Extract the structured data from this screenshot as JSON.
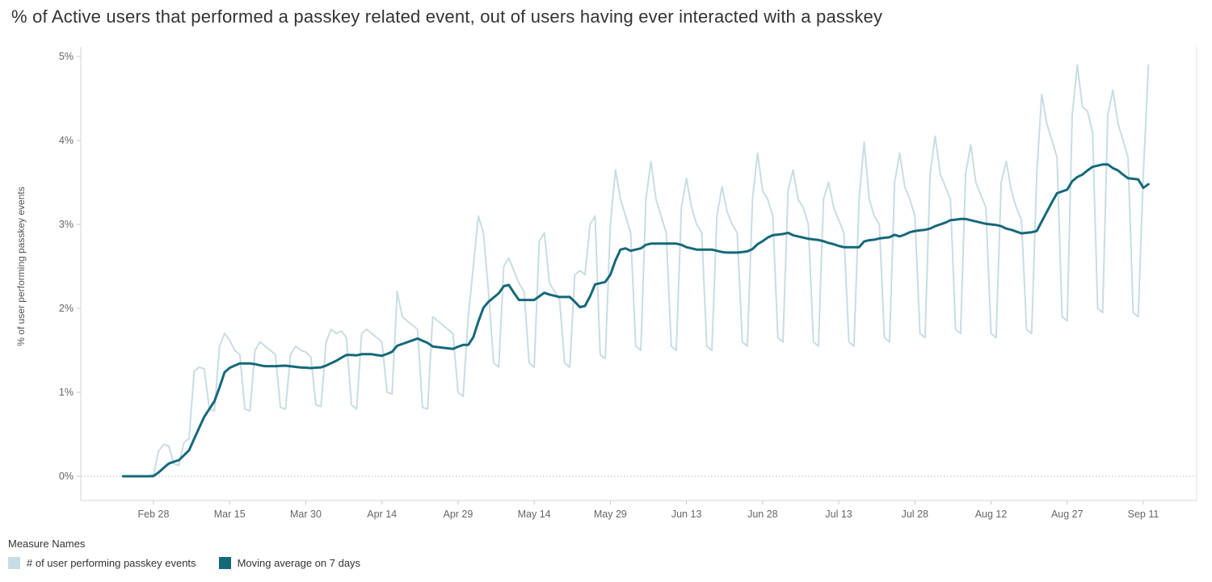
{
  "title": "% of Active users that performed a passkey related event, out of users having ever interacted with a passkey",
  "legend": {
    "title": "Measure Names",
    "items": [
      {
        "label": "# of user performing passkey events",
        "color": "#c8dde3"
      },
      {
        "label": "Moving average on 7 days",
        "color": "#15687a"
      }
    ]
  },
  "chart_data": {
    "type": "line",
    "title": "% of Active users that performed a passkey related event, out of users having ever interacted with a passkey",
    "xlabel": "",
    "ylabel": "% of user performing passkey events",
    "ylim": [
      0,
      5
    ],
    "y_ticks": [
      "0%",
      "1%",
      "2%",
      "3%",
      "4%",
      "5%"
    ],
    "x_ticks": [
      {
        "label": "Feb 28",
        "day": 6
      },
      {
        "label": "Mar 15",
        "day": 21
      },
      {
        "label": "Mar 30",
        "day": 36
      },
      {
        "label": "Apr 14",
        "day": 51
      },
      {
        "label": "Apr 29",
        "day": 66
      },
      {
        "label": "May 14",
        "day": 81
      },
      {
        "label": "May 29",
        "day": 96
      },
      {
        "label": "Jun 13",
        "day": 111
      },
      {
        "label": "Jun 28",
        "day": 126
      },
      {
        "label": "Jul 13",
        "day": 141
      },
      {
        "label": "Jul 28",
        "day": 156
      },
      {
        "label": "Aug 12",
        "day": 171
      },
      {
        "label": "Aug 27",
        "day": 186
      },
      {
        "label": "Sep 11",
        "day": 201
      }
    ],
    "grid": "dotted horizontal line at 0% only",
    "legend_position": "bottom-left",
    "series": [
      {
        "name": "# of user performing passkey events",
        "color": "#c8dde3",
        "unit": "percent",
        "values": [
          0,
          0,
          0,
          0,
          0,
          0,
          0.02,
          0.3,
          0.38,
          0.36,
          0.15,
          0.13,
          0.4,
          0.45,
          1.25,
          1.3,
          1.28,
          0.8,
          0.78,
          1.55,
          1.7,
          1.62,
          1.5,
          1.45,
          0.8,
          0.78,
          1.5,
          1.6,
          1.55,
          1.5,
          1.45,
          0.82,
          0.8,
          1.45,
          1.55,
          1.5,
          1.48,
          1.42,
          0.85,
          0.83,
          1.6,
          1.75,
          1.7,
          1.73,
          1.65,
          0.85,
          0.8,
          1.7,
          1.75,
          1.7,
          1.65,
          1.6,
          1.0,
          0.98,
          2.2,
          1.9,
          1.85,
          1.8,
          1.75,
          0.82,
          0.8,
          1.9,
          1.85,
          1.8,
          1.75,
          1.7,
          1.0,
          0.95,
          1.9,
          2.5,
          3.1,
          2.9,
          2.2,
          1.35,
          1.3,
          2.5,
          2.6,
          2.45,
          2.3,
          2.2,
          1.35,
          1.3,
          2.8,
          2.9,
          2.3,
          2.2,
          2.1,
          1.35,
          1.3,
          2.4,
          2.45,
          2.4,
          3.0,
          3.1,
          1.45,
          1.4,
          3.0,
          3.65,
          3.3,
          3.1,
          2.9,
          1.55,
          1.5,
          3.3,
          3.75,
          3.3,
          3.1,
          2.9,
          1.55,
          1.5,
          3.2,
          3.55,
          3.2,
          3.0,
          2.9,
          1.55,
          1.5,
          3.1,
          3.45,
          3.15,
          3.0,
          2.9,
          1.6,
          1.55,
          3.3,
          3.85,
          3.4,
          3.3,
          3.1,
          1.65,
          1.6,
          3.4,
          3.65,
          3.3,
          3.2,
          3.0,
          1.6,
          1.55,
          3.3,
          3.5,
          3.2,
          3.05,
          2.9,
          1.6,
          1.55,
          3.3,
          3.98,
          3.3,
          3.1,
          3.0,
          1.65,
          1.6,
          3.5,
          3.85,
          3.45,
          3.3,
          3.1,
          1.7,
          1.65,
          3.6,
          4.05,
          3.6,
          3.45,
          3.3,
          1.75,
          1.7,
          3.6,
          3.95,
          3.5,
          3.35,
          3.2,
          1.7,
          1.65,
          3.5,
          3.75,
          3.4,
          3.2,
          3.05,
          1.75,
          1.7,
          3.6,
          4.55,
          4.2,
          4.0,
          3.8,
          1.9,
          1.85,
          4.3,
          4.9,
          4.4,
          4.35,
          4.1,
          2.0,
          1.95,
          4.3,
          4.6,
          4.2,
          4.0,
          3.8,
          1.95,
          1.9,
          3.6,
          4.9
        ]
      },
      {
        "name": "Moving average on 7 days",
        "color": "#15687a",
        "unit": "percent",
        "window_days": 7,
        "derived_from": "# of user performing passkey events"
      }
    ]
  }
}
